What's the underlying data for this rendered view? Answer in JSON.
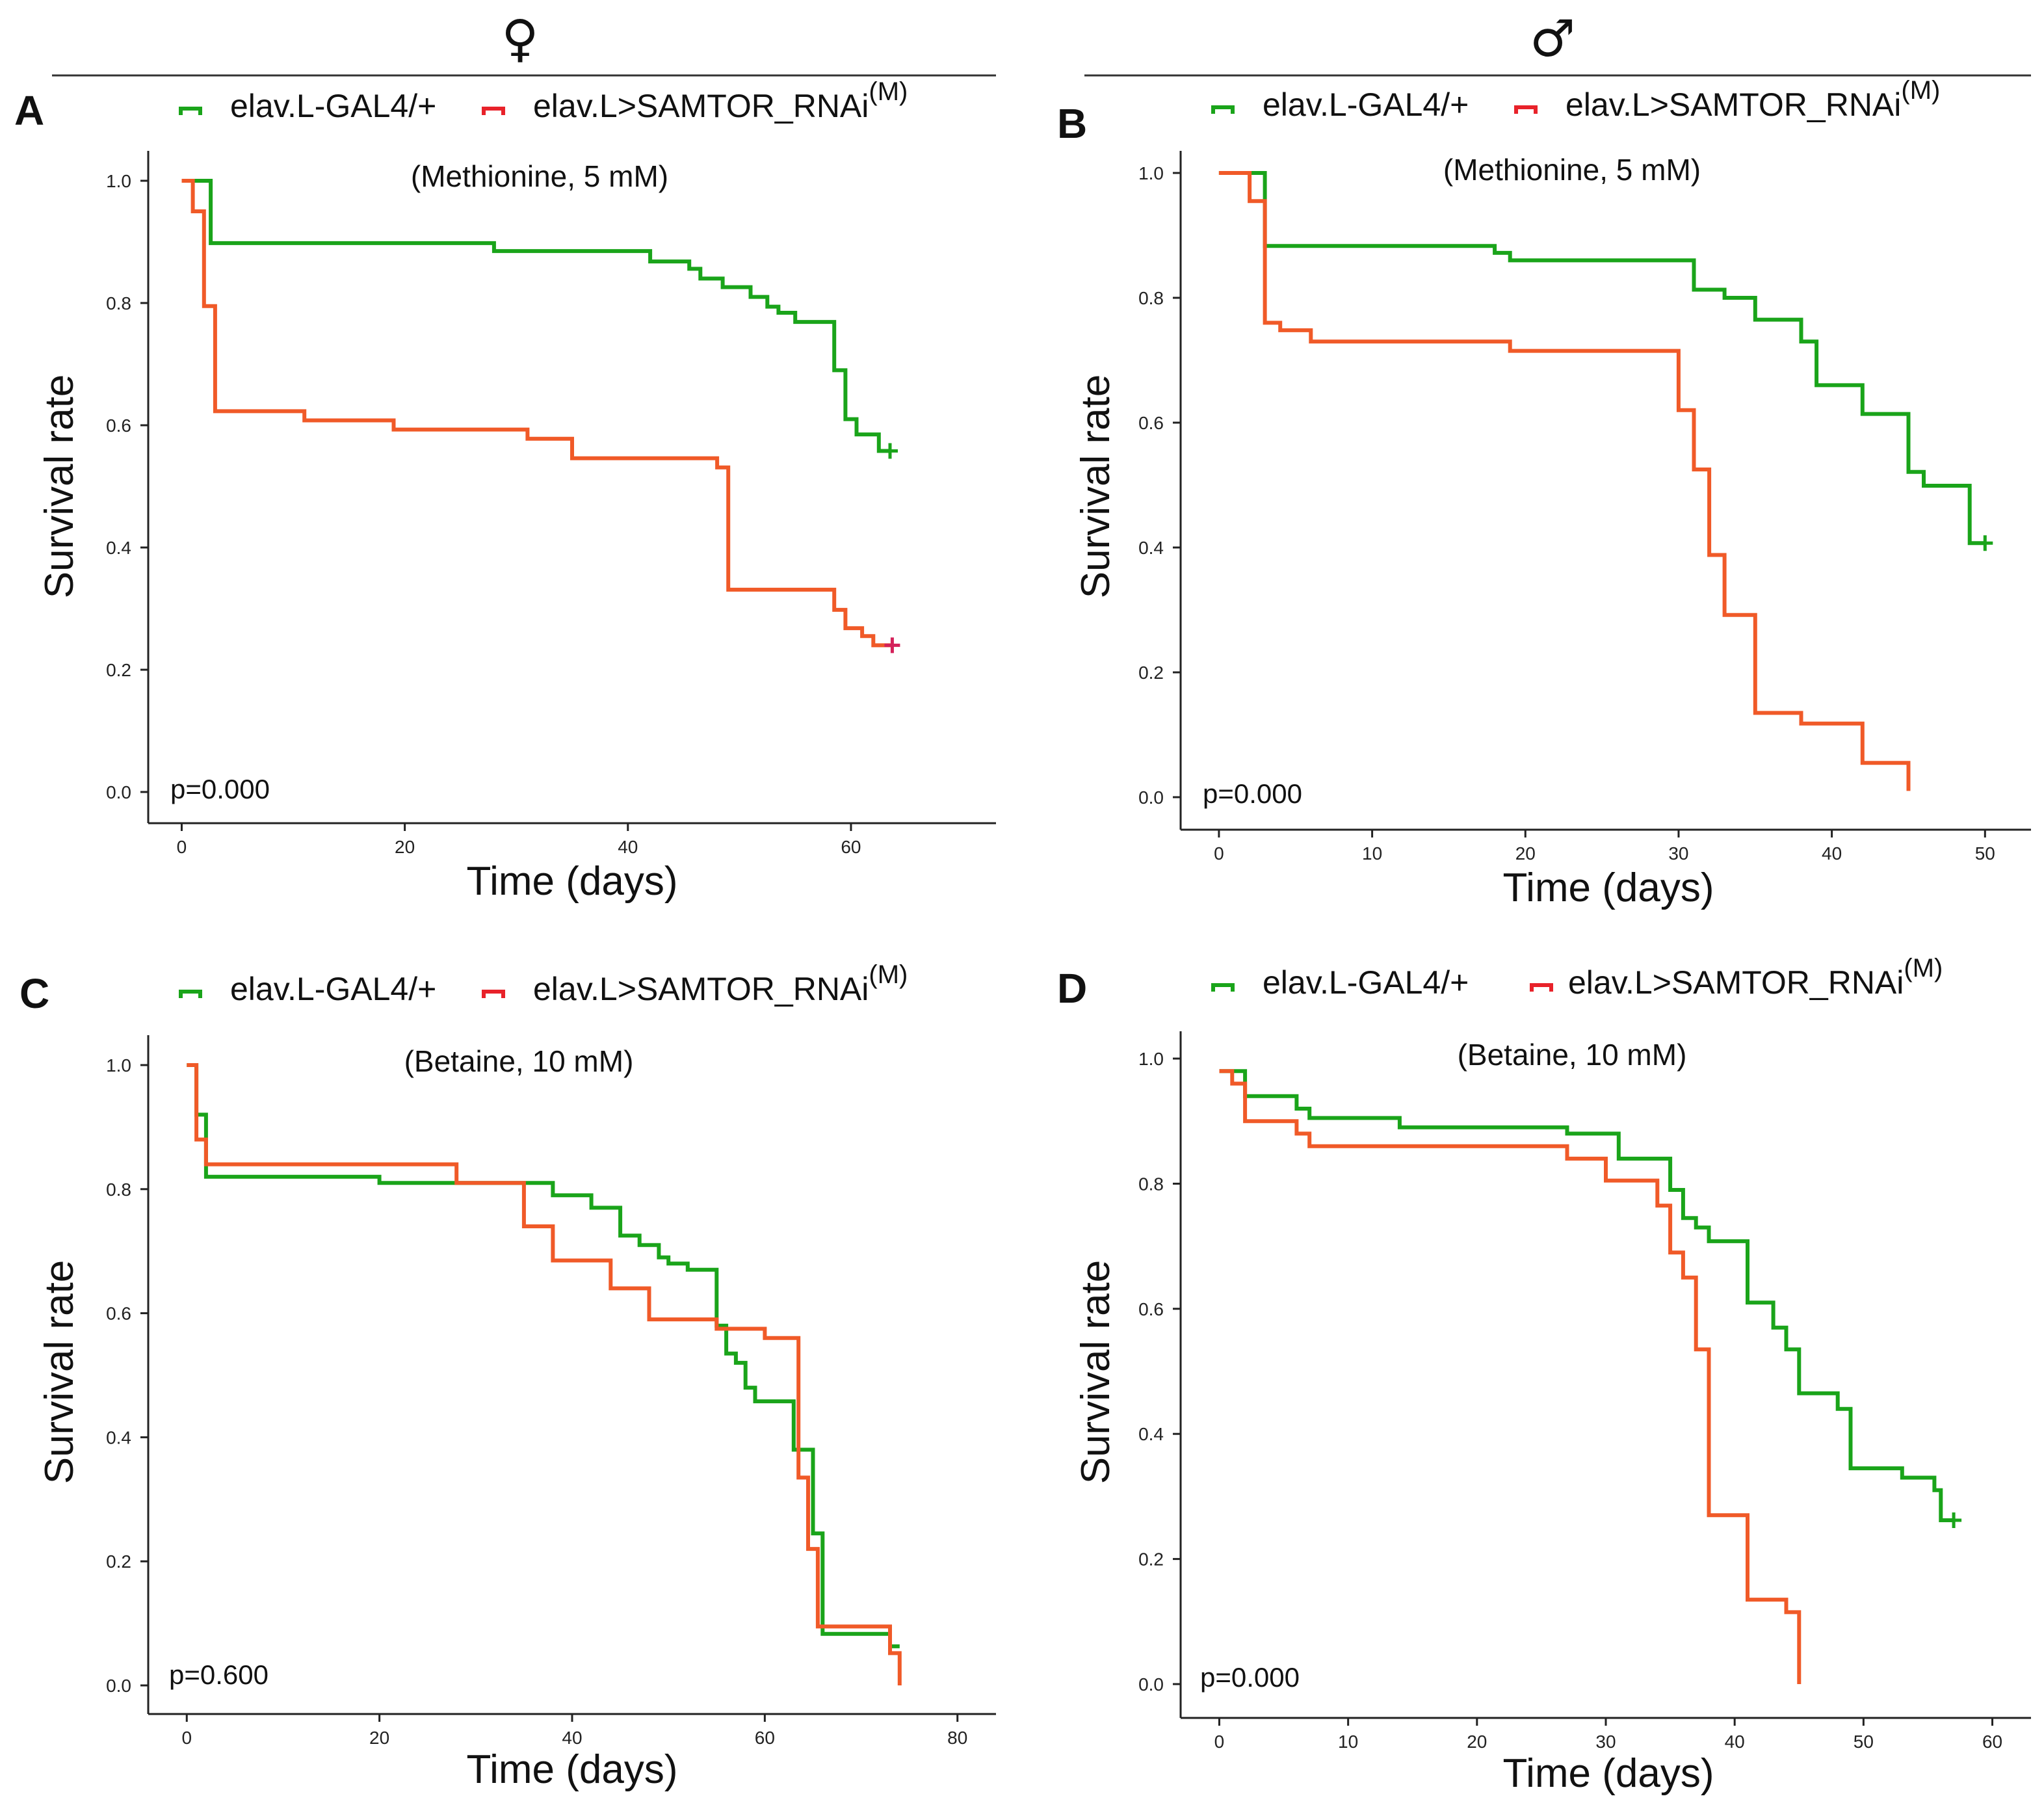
{
  "header": {
    "female_symbol": "♀",
    "male_symbol": "♂"
  },
  "colors": {
    "control": "#1aa41a",
    "rnai": "#f05a28",
    "rnai_legend": "#e8222a",
    "censor_rnai_A": "#d4215a"
  },
  "legend": {
    "control_label": "elav.L-GAL4/+",
    "rnai_label": "elav.L>SAMTOR_RNAi",
    "rnai_superscript": "(M)"
  },
  "chart_data": [
    {
      "panel": "A",
      "type": "line",
      "subtype": "kaplan-meier step",
      "condition": "(Methionine, 5 mM)",
      "p_value": "p=0.000",
      "xlabel": "Time (days)",
      "ylabel": "Survival rate",
      "xlim": [
        -3,
        73
      ],
      "ylim": [
        0.0,
        1.0
      ],
      "xticks": [
        0,
        20,
        40,
        60
      ],
      "yticks": [
        "0.0",
        "0.2",
        "0.4",
        "0.6",
        "0.8",
        "1.0"
      ],
      "series": [
        {
          "name": "elav.L-GAL4/+",
          "key": "control",
          "censored": true,
          "t": [
            0,
            2,
            2.6,
            2.6,
            28,
            42,
            45.5,
            46.5,
            48.5,
            51,
            52.5,
            53.5,
            55,
            58.5,
            59.5,
            60.5,
            62.5,
            63.5
          ],
          "s": [
            1.0,
            1.0,
            0.955,
            0.898,
            0.885,
            0.868,
            0.856,
            0.84,
            0.826,
            0.81,
            0.794,
            0.784,
            0.769,
            0.69,
            0.61,
            0.585,
            0.558,
            0.558
          ]
        },
        {
          "name": "elav.L>SAMTOR_RNAi(M)",
          "key": "rnai",
          "censored": true,
          "t": [
            0,
            1,
            2,
            3,
            11,
            19,
            31,
            35,
            48,
            48.5,
            49,
            58.5,
            59.5,
            61,
            62,
            63,
            63.7
          ],
          "s": [
            1.0,
            0.95,
            0.795,
            0.623,
            0.608,
            0.593,
            0.578,
            0.546,
            0.531,
            0.531,
            0.331,
            0.298,
            0.268,
            0.255,
            0.24,
            0.24,
            0.24
          ]
        }
      ]
    },
    {
      "panel": "B",
      "type": "line",
      "subtype": "kaplan-meier step",
      "condition": "(Methionine, 5 mM)",
      "p_value": "p=0.000",
      "xlabel": "Time (days)",
      "ylabel": "Survival rate",
      "xlim": [
        -2.5,
        53
      ],
      "ylim": [
        0.0,
        1.0
      ],
      "xticks": [
        0,
        10,
        20,
        30,
        40,
        50
      ],
      "yticks": [
        "0.0",
        "0.2",
        "0.4",
        "0.6",
        "0.8",
        "1.0"
      ],
      "series": [
        {
          "name": "elav.L-GAL4/+",
          "key": "control",
          "censored": true,
          "t": [
            0,
            3,
            18,
            19,
            31,
            33,
            35,
            38,
            39,
            42,
            45,
            46,
            49,
            50
          ],
          "s": [
            1.0,
            0.883,
            0.872,
            0.86,
            0.813,
            0.8,
            0.765,
            0.73,
            0.66,
            0.614,
            0.521,
            0.499,
            0.407,
            0.407
          ]
        },
        {
          "name": "elav.L>SAMTOR_RNAi(M)",
          "key": "rnai",
          "censored": false,
          "t": [
            0,
            2,
            3,
            4,
            6,
            19,
            30,
            31,
            32,
            33,
            35,
            38,
            42,
            45
          ],
          "s": [
            1.0,
            0.955,
            0.76,
            0.748,
            0.73,
            0.715,
            0.62,
            0.525,
            0.388,
            0.292,
            0.135,
            0.118,
            0.055,
            0.01
          ]
        }
      ]
    },
    {
      "panel": "C",
      "type": "line",
      "subtype": "kaplan-meier step",
      "condition": "(Betaine, 10 mM)",
      "p_value": "p=0.600",
      "xlabel": "Time (days)",
      "ylabel": "Survival rate",
      "xlim": [
        -4,
        84
      ],
      "ylim": [
        0.0,
        1.0
      ],
      "xticks": [
        0,
        20,
        40,
        60,
        80
      ],
      "yticks": [
        "0.0",
        "0.2",
        "0.4",
        "0.6",
        "0.8",
        "1.0"
      ],
      "series": [
        {
          "name": "elav.L-GAL4/+",
          "key": "control",
          "censored": false,
          "t": [
            0,
            1,
            2,
            20,
            38,
            42,
            45,
            47,
            49,
            50,
            52,
            55,
            56,
            57,
            58,
            59,
            63,
            65,
            66,
            73,
            74
          ],
          "s": [
            1.0,
            0.92,
            0.82,
            0.81,
            0.79,
            0.77,
            0.725,
            0.71,
            0.69,
            0.68,
            0.67,
            0.58,
            0.535,
            0.52,
            0.48,
            0.458,
            0.38,
            0.245,
            0.083,
            0.063,
            0.063
          ]
        },
        {
          "name": "elav.L>SAMTOR_RNAi(M)",
          "key": "rnai",
          "censored": false,
          "t": [
            0,
            1,
            2,
            28,
            35,
            38,
            44,
            48,
            55,
            60,
            63.5,
            64.5,
            65.5,
            66.5,
            73,
            74
          ],
          "s": [
            1.0,
            0.88,
            0.84,
            0.81,
            0.74,
            0.685,
            0.64,
            0.59,
            0.575,
            0.56,
            0.335,
            0.22,
            0.095,
            0.095,
            0.052,
            0.0
          ]
        }
      ]
    },
    {
      "panel": "D",
      "type": "line",
      "subtype": "kaplan-meier step",
      "condition": "(Betaine, 10 mM)",
      "p_value": "p=0.000",
      "xlabel": "Time (days)",
      "ylabel": "Survival rate",
      "xlim": [
        -3,
        63
      ],
      "ylim": [
        0.0,
        1.0
      ],
      "xticks": [
        0,
        10,
        20,
        30,
        40,
        50,
        60
      ],
      "yticks": [
        "0.0",
        "0.2",
        "0.4",
        "0.6",
        "0.8",
        "1.0"
      ],
      "series": [
        {
          "name": "elav.L-GAL4/+",
          "key": "control",
          "censored": true,
          "t": [
            0,
            2,
            6,
            7,
            14,
            27,
            31,
            35,
            36,
            37,
            38,
            41,
            43,
            44,
            45,
            48,
            49,
            53,
            55.5,
            56,
            57
          ],
          "s": [
            0.98,
            0.94,
            0.92,
            0.905,
            0.89,
            0.88,
            0.84,
            0.79,
            0.745,
            0.73,
            0.708,
            0.61,
            0.57,
            0.535,
            0.465,
            0.44,
            0.345,
            0.33,
            0.31,
            0.262,
            0.262
          ]
        },
        {
          "name": "elav.L>SAMTOR_RNAi(M)",
          "key": "rnai",
          "censored": false,
          "t": [
            0,
            1,
            2,
            6,
            7,
            27,
            30,
            34,
            35,
            36,
            37,
            38,
            41,
            44,
            45
          ],
          "s": [
            0.98,
            0.96,
            0.9,
            0.88,
            0.86,
            0.84,
            0.805,
            0.765,
            0.69,
            0.65,
            0.535,
            0.27,
            0.135,
            0.115,
            0.0
          ]
        }
      ]
    }
  ]
}
